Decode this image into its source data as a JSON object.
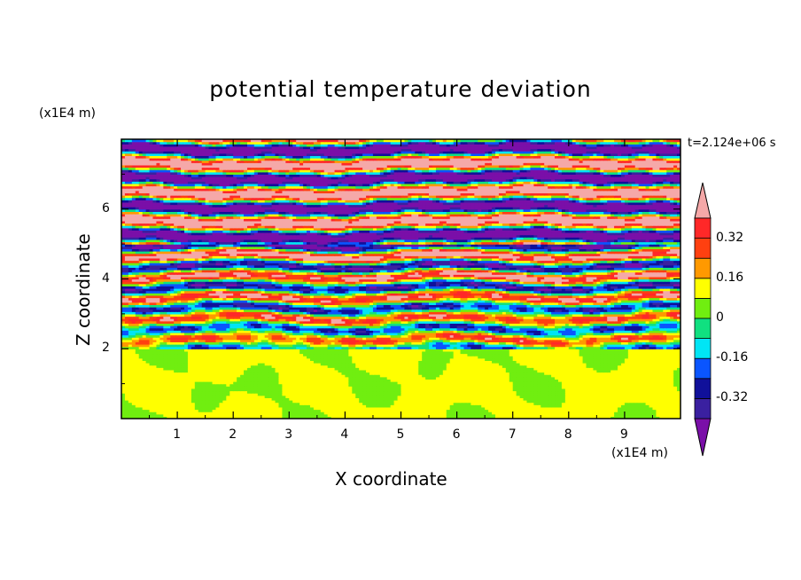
{
  "chart_data": {
    "type": "heatmap",
    "title": "potential temperature deviation",
    "xlabel": "X coordinate",
    "ylabel": "Z coordinate",
    "x_unit": "(x1E4 m)",
    "y_unit": "(x1E4 m)",
    "time_label": "t=2.124e+06 s",
    "xlim": [
      0,
      10
    ],
    "ylim": [
      0,
      8
    ],
    "x_ticks": [
      "1",
      "2",
      "3",
      "4",
      "5",
      "6",
      "7",
      "8",
      "9"
    ],
    "y_ticks": [
      "2",
      "4",
      "6"
    ],
    "colorbar": {
      "levels": [
        -0.4,
        -0.32,
        -0.24,
        -0.16,
        -0.08,
        0,
        0.08,
        0.16,
        0.24,
        0.32,
        0.4
      ],
      "tick_labels": [
        "0.32",
        "0.16",
        "0",
        "-0.16",
        "-0.32"
      ],
      "tick_values": [
        0.32,
        0.16,
        0,
        -0.16,
        -0.32
      ],
      "colors_low_to_high": [
        "#7a0fa8",
        "#3a20a0",
        "#10109a",
        "#0a55ff",
        "#00e5f5",
        "#10e080",
        "#70ee10",
        "#ffff00",
        "#ff9900",
        "#ff4010",
        "#ff2828",
        "#f5a8a8"
      ],
      "extend": "both"
    },
    "layers": [
      {
        "z": [
          0,
          2.0
        ],
        "pattern": "smooth green/teal blobs"
      },
      {
        "z": [
          2.0,
          5.0
        ],
        "pattern": "noisy multicolor bands"
      },
      {
        "z": [
          5.0,
          8.0
        ],
        "pattern": "alternating pink/purple stripes"
      }
    ]
  }
}
